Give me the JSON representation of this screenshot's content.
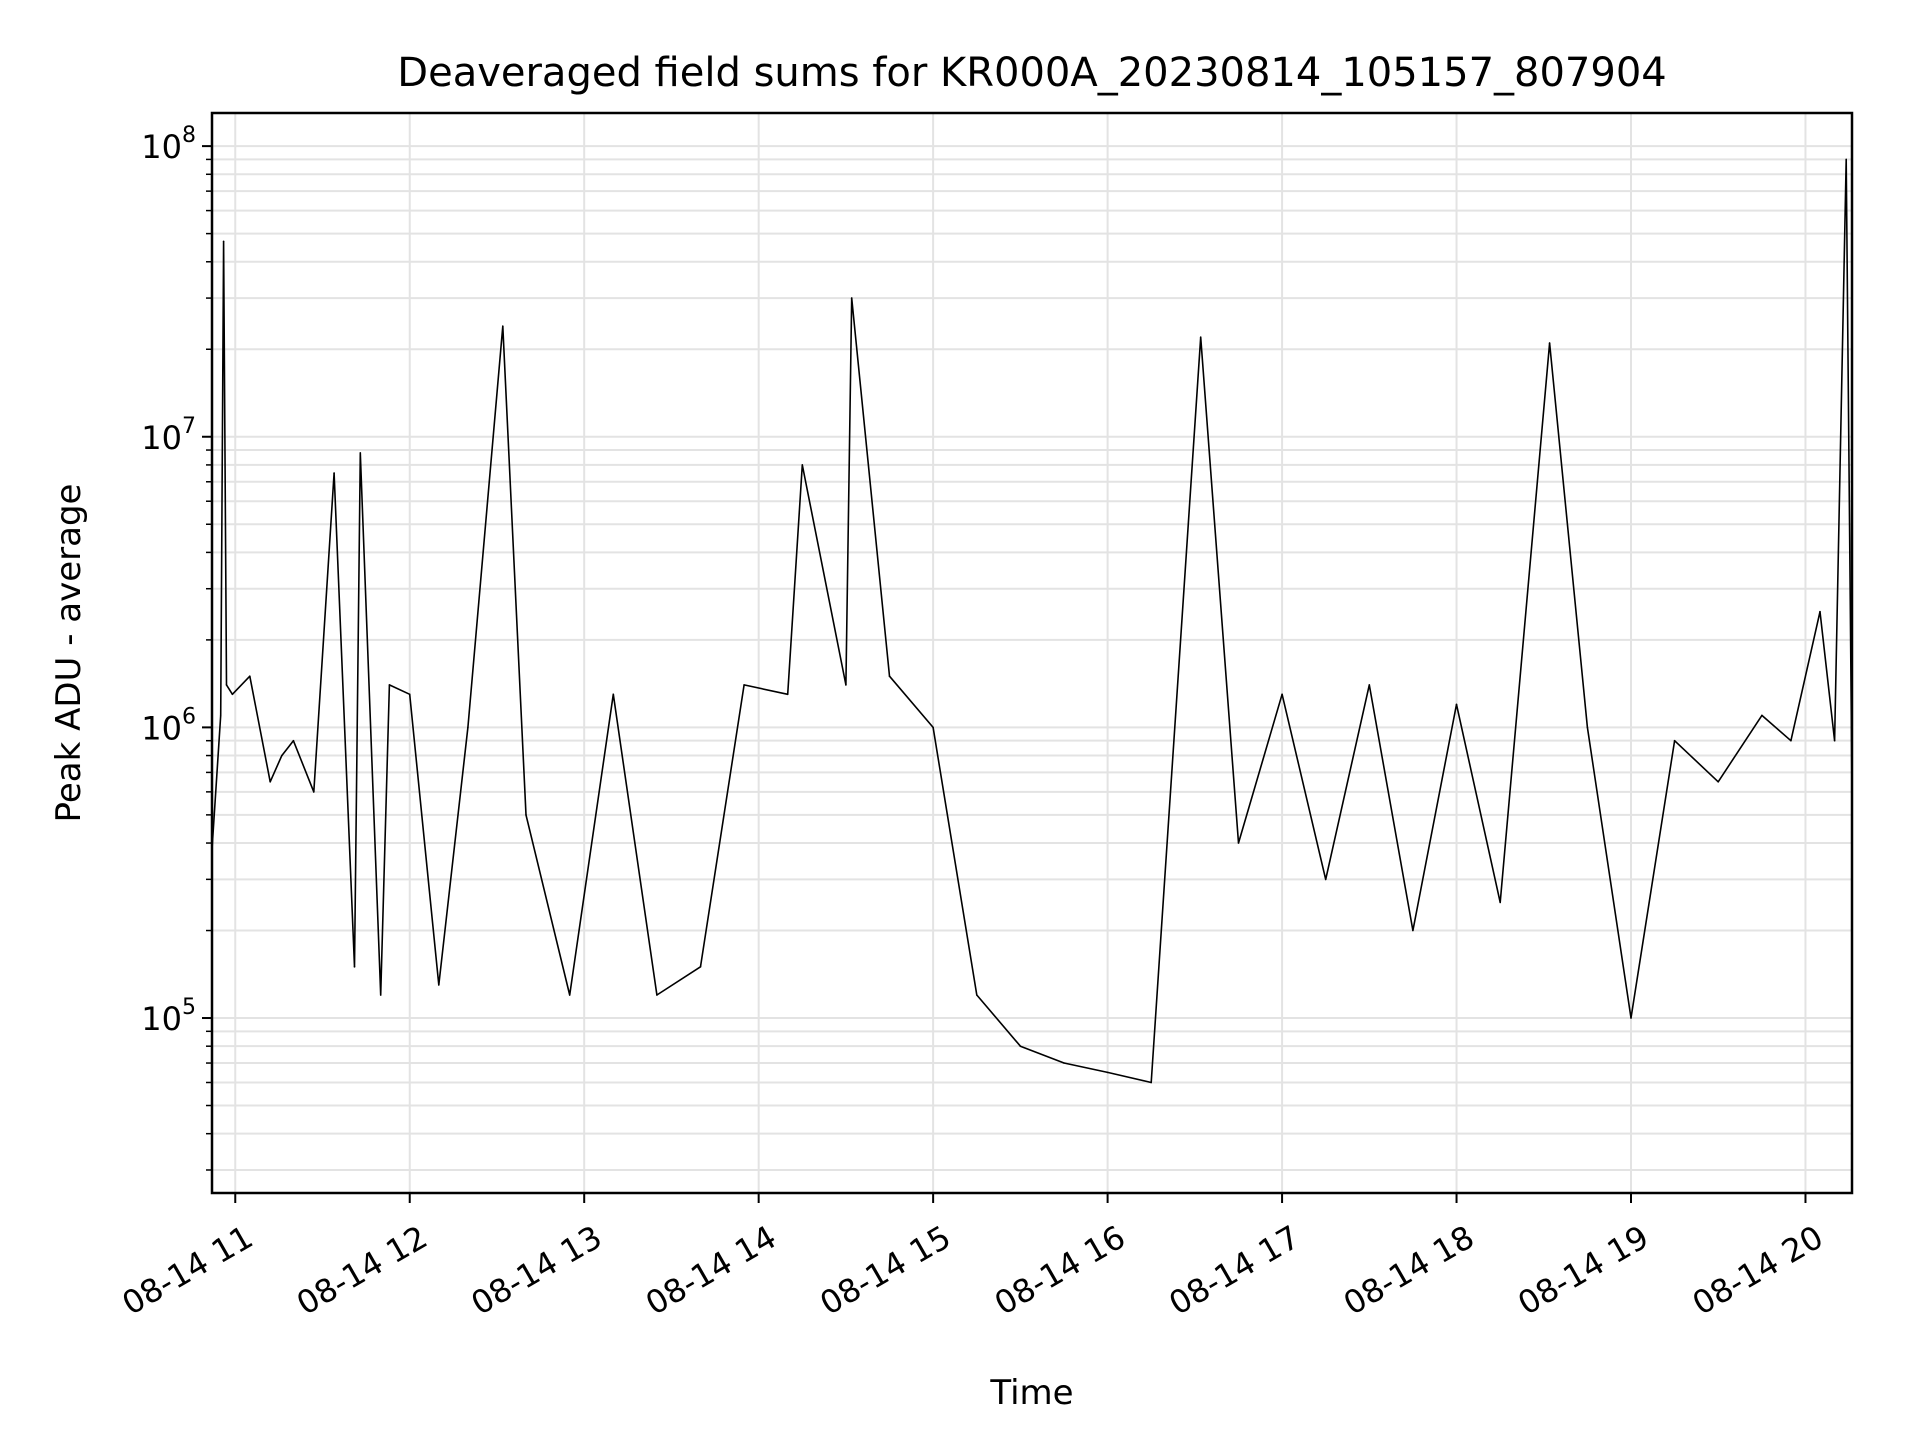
{
  "chart_data": {
    "type": "line",
    "title": "Deaveraged field sums for KR000A_20230814_105157_807904",
    "xlabel": "Time",
    "ylabel": "Peak ADU - average",
    "yscale": "log",
    "ylim": [
      25000,
      130000000
    ],
    "xlim": [
      "2023-08-14 10:52",
      "2023-08-14 20:16"
    ],
    "x_ticks": [
      "08-14 11",
      "08-14 12",
      "08-14 13",
      "08-14 14",
      "08-14 15",
      "08-14 16",
      "08-14 17",
      "08-14 18",
      "08-14 19",
      "08-14 20"
    ],
    "y_ticks": [
      {
        "base": "10",
        "exp": "5",
        "value": 100000
      },
      {
        "base": "10",
        "exp": "6",
        "value": 1000000
      },
      {
        "base": "10",
        "exp": "7",
        "value": 10000000
      },
      {
        "base": "10",
        "exp": "8",
        "value": 100000000
      }
    ],
    "grid": true,
    "line_color": "#000000",
    "series": [
      {
        "x": [
          "2023-08-14 10:52",
          "2023-08-14 10:55",
          "2023-08-14 10:56",
          "2023-08-14 10:57",
          "2023-08-14 10:59",
          "2023-08-14 11:05",
          "2023-08-14 11:12",
          "2023-08-14 11:16",
          "2023-08-14 11:20",
          "2023-08-14 11:27",
          "2023-08-14 11:34",
          "2023-08-14 11:41",
          "2023-08-14 11:43",
          "2023-08-14 11:50",
          "2023-08-14 11:53",
          "2023-08-14 12:00",
          "2023-08-14 12:10",
          "2023-08-14 12:20",
          "2023-08-14 12:32",
          "2023-08-14 12:40",
          "2023-08-14 12:55",
          "2023-08-14 13:10",
          "2023-08-14 13:25",
          "2023-08-14 13:40",
          "2023-08-14 13:55",
          "2023-08-14 14:10",
          "2023-08-14 14:15",
          "2023-08-14 14:30",
          "2023-08-14 14:32",
          "2023-08-14 14:45",
          "2023-08-14 15:00",
          "2023-08-14 15:15",
          "2023-08-14 15:30",
          "2023-08-14 15:45",
          "2023-08-14 16:00",
          "2023-08-14 16:15",
          "2023-08-14 16:32",
          "2023-08-14 16:45",
          "2023-08-14 17:00",
          "2023-08-14 17:15",
          "2023-08-14 17:30",
          "2023-08-14 17:45",
          "2023-08-14 18:00",
          "2023-08-14 18:15",
          "2023-08-14 18:32",
          "2023-08-14 18:45",
          "2023-08-14 19:00",
          "2023-08-14 19:15",
          "2023-08-14 19:30",
          "2023-08-14 19:45",
          "2023-08-14 19:55",
          "2023-08-14 20:05",
          "2023-08-14 20:10",
          "2023-08-14 20:14",
          "2023-08-14 20:16"
        ],
        "y": [
          380000,
          1100000,
          47000000,
          1400000,
          1300000,
          1500000,
          650000,
          800000,
          900000,
          600000,
          7500000,
          150000,
          8800000,
          120000,
          1400000,
          1300000,
          130000,
          1000000,
          24000000,
          500000,
          120000,
          1300000,
          120000,
          150000,
          1400000,
          1300000,
          8000000,
          1400000,
          30000000,
          1500000,
          1000000,
          120000,
          80000,
          70000,
          65000,
          60000,
          22000000,
          400000,
          1300000,
          300000,
          1400000,
          200000,
          1200000,
          250000,
          21000000,
          1000000,
          100000,
          900000,
          650000,
          1100000,
          900000,
          2500000,
          900000,
          90000000,
          600000
        ]
      }
    ]
  }
}
